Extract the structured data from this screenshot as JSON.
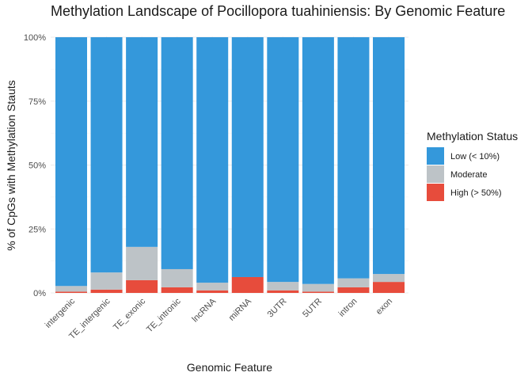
{
  "chart_data": {
    "type": "bar",
    "stacked": true,
    "title": "Methylation Landscape of Pocillopora tuahiniensis: By Genomic Feature",
    "xlabel": "Genomic Feature",
    "ylabel": "% of CpGs with Methylation Stauts",
    "ylim": [
      0,
      1
    ],
    "yticks": [
      {
        "value": 0,
        "label": "0%"
      },
      {
        "value": 0.25,
        "label": "25%"
      },
      {
        "value": 0.5,
        "label": "50%"
      },
      {
        "value": 0.75,
        "label": "75%"
      },
      {
        "value": 1,
        "label": "100%"
      }
    ],
    "categories": [
      "intergenic",
      "TE_intergenic",
      "TE_exonic",
      "TE_intronic",
      "lncRNA",
      "miRNA",
      "3UTR",
      "5UTR",
      "intron",
      "exon"
    ],
    "series": [
      {
        "name": "High (> 50%)",
        "color": "#E74C3C",
        "values": [
          0.005,
          0.013,
          0.05,
          0.022,
          0.01,
          0.062,
          0.01,
          0.005,
          0.022,
          0.043
        ]
      },
      {
        "name": "Moderate",
        "color": "#BDC3C7",
        "values": [
          0.022,
          0.067,
          0.13,
          0.071,
          0.03,
          0.0,
          0.033,
          0.03,
          0.035,
          0.031
        ]
      },
      {
        "name": "Low (< 10%)",
        "color": "#3498DB",
        "values": [
          0.973,
          0.92,
          0.82,
          0.907,
          0.96,
          0.938,
          0.957,
          0.965,
          0.943,
          0.926
        ]
      }
    ],
    "legend": {
      "title": "Methylation Status",
      "position": "right",
      "order": [
        "Low (< 10%)",
        "Moderate",
        "High (> 50%)"
      ]
    },
    "grid": true
  }
}
